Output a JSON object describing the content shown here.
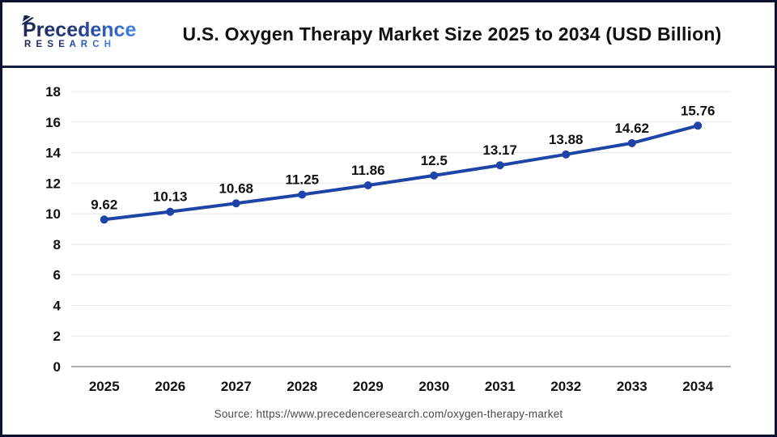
{
  "header": {
    "logo": {
      "name": "Precedence",
      "sub": "R E S E A R C H"
    },
    "title": "U.S. Oxygen Therapy Market Size 2025 to 2034 (USD Billion)"
  },
  "chart_data": {
    "type": "line",
    "title": "U.S. Oxygen Therapy Market Size 2025 to 2034 (USD Billion)",
    "xlabel": "",
    "ylabel": "",
    "categories": [
      "2025",
      "2026",
      "2027",
      "2028",
      "2029",
      "2030",
      "2031",
      "2032",
      "2033",
      "2034"
    ],
    "values": [
      9.62,
      10.13,
      10.68,
      11.25,
      11.86,
      12.5,
      13.17,
      13.88,
      14.62,
      15.76
    ],
    "value_labels": [
      "9.62",
      "10.13",
      "10.68",
      "11.25",
      "11.86",
      "12.5",
      "13.17",
      "13.88",
      "14.62",
      "15.76"
    ],
    "ylim": [
      0,
      18
    ],
    "ytick_step": 2,
    "grid": "on",
    "legend": "none",
    "marker": "circle"
  },
  "colors": {
    "line": "#1f44a8",
    "marker": "#1f44a8",
    "grid": "#e8e8e8",
    "axis": "#b0b0b0",
    "tick_text": "#111111",
    "data_label": "#111111",
    "divider": "#141b42",
    "logo_dark": "#1f2857",
    "logo_light": "#3f83e8"
  },
  "footer": {
    "source": "Source: https://www.precedenceresearch.com/oxygen-therapy-market"
  }
}
